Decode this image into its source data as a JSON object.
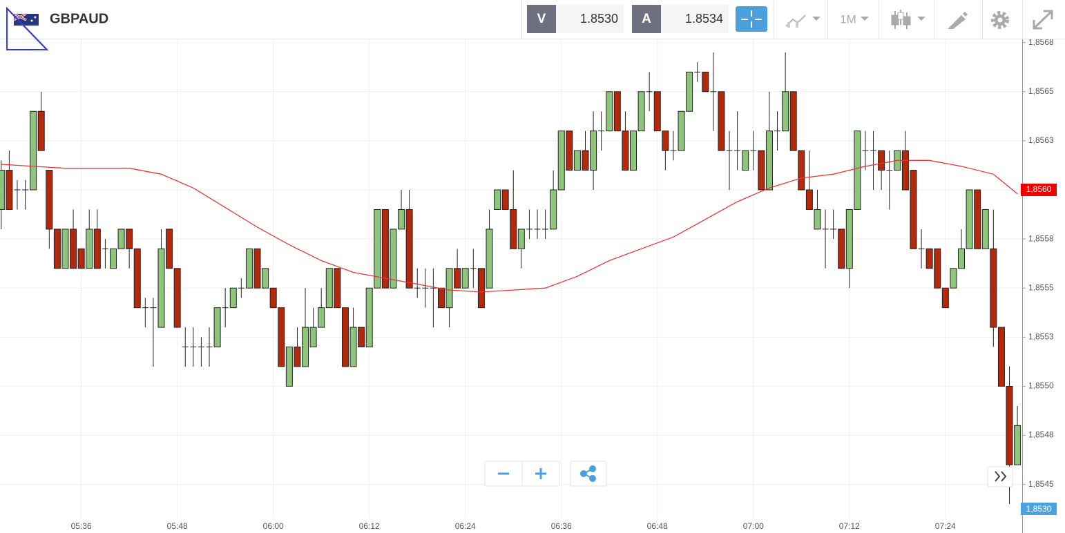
{
  "header": {
    "symbol": "GBPAUD",
    "bid_label": "V",
    "bid": "1.8530",
    "ask_label": "A",
    "ask": "1.8534",
    "timeframe": "1M",
    "bottom_tag": "1,8530"
  },
  "chart_data": {
    "type": "candlestick",
    "categories": [
      null,
      null,
      null,
      null,
      null,
      null,
      null,
      null,
      null,
      null,
      "05:36",
      null,
      null,
      null,
      null,
      null,
      null,
      null,
      null,
      null,
      null,
      null,
      "05:48",
      null,
      null,
      null,
      null,
      null,
      null,
      null,
      null,
      null,
      null,
      null,
      "06:00",
      null,
      null,
      null,
      null,
      null,
      null,
      null,
      null,
      null,
      null,
      null,
      "06:12",
      null,
      null,
      null,
      null,
      null,
      null,
      null,
      null,
      null,
      null,
      null,
      "06:24",
      null,
      null,
      null,
      null,
      null,
      null,
      null,
      null,
      null,
      null,
      null,
      "06:36",
      null,
      null,
      null,
      null,
      null,
      null,
      null,
      null,
      null,
      null,
      null,
      "06:48",
      null,
      null,
      null,
      null,
      null,
      null,
      null,
      null,
      null,
      null,
      null,
      "07:00",
      null,
      null,
      null,
      null,
      null,
      null,
      null,
      null,
      null,
      null,
      null,
      "07:12",
      null,
      null,
      null,
      null,
      null,
      null,
      null,
      null,
      null,
      null,
      null,
      "07:24",
      null,
      null,
      null,
      null,
      null,
      null,
      null,
      null,
      null
    ],
    "open": [
      1.8559,
      1.8561,
      1.856,
      1.856,
      1.856,
      1.8564,
      1.8561,
      1.8558,
      1.8556,
      1.8558,
      1.8557,
      1.8556,
      1.8558,
      1.8557,
      1.8556,
      1.8557,
      1.8558,
      1.8557,
      1.8554,
      1.8554,
      1.8553,
      1.8558,
      1.8556,
      1.8552,
      1.8552,
      1.8552,
      1.8552,
      1.8552,
      1.8554,
      1.8554,
      1.8555,
      1.8555,
      1.8557,
      1.8555,
      1.8555,
      1.8554,
      1.855,
      1.8552,
      1.8551,
      1.8552,
      1.8553,
      1.8554,
      1.8556,
      1.8554,
      1.8551,
      1.8553,
      1.8552,
      1.8555,
      1.8559,
      1.8555,
      1.8558,
      1.8559,
      1.8555,
      1.8555,
      1.8555,
      1.8555,
      1.8554,
      1.8556,
      1.8555,
      1.8556,
      1.8556,
      1.8555,
      1.8559,
      1.856,
      1.8559,
      1.8557,
      1.8558,
      1.8558,
      1.8558,
      1.8558,
      1.856,
      1.8563,
      1.8561,
      1.8562,
      1.8561,
      1.8563,
      1.8563,
      1.8565,
      1.8563,
      1.8561,
      1.8563,
      1.8565,
      1.8565,
      1.8563,
      1.8562,
      1.8562,
      1.8564,
      1.8566,
      1.8566,
      1.8565,
      1.8565,
      1.8562,
      1.8562,
      1.8561,
      1.8562,
      1.8562,
      1.856,
      1.8563,
      1.8563,
      1.8565,
      1.8562,
      1.856,
      1.8558,
      1.8558,
      1.8558,
      1.8558,
      1.8556,
      1.8559,
      1.8562,
      1.8562,
      1.8562,
      1.8561,
      1.8561,
      1.8562,
      1.8561,
      1.8557,
      1.8557,
      1.8557,
      1.8555,
      1.8555,
      1.8556,
      1.8557,
      1.856,
      1.8557,
      1.8557,
      1.8553,
      1.855,
      1.8546
    ],
    "high": [
      1.85615,
      1.8562,
      1.85605,
      1.85605,
      1.8564,
      1.8565,
      1.8561,
      1.8558,
      1.8558,
      1.8559,
      1.8557,
      1.8559,
      1.8559,
      1.85575,
      1.8557,
      1.8558,
      1.8558,
      1.8557,
      1.85545,
      1.85545,
      1.8558,
      1.8558,
      1.8556,
      1.8553,
      1.8553,
      1.85525,
      1.8553,
      1.8554,
      1.8555,
      1.8555,
      1.85555,
      1.8557,
      1.8557,
      1.8556,
      1.8555,
      1.8554,
      1.8552,
      1.8553,
      1.8555,
      1.8554,
      1.8555,
      1.8556,
      1.8556,
      1.8554,
      1.8554,
      1.8553,
      1.8555,
      1.8559,
      1.8559,
      1.8558,
      1.856,
      1.856,
      1.8556,
      1.8556,
      1.8556,
      1.8555,
      1.8556,
      1.8557,
      1.8556,
      1.8557,
      1.8556,
      1.8559,
      1.856,
      1.856,
      1.8561,
      1.8558,
      1.8559,
      1.8559,
      1.8559,
      1.8561,
      1.8563,
      1.8563,
      1.8562,
      1.8563,
      1.8564,
      1.8564,
      1.8565,
      1.8565,
      1.8564,
      1.8563,
      1.8565,
      1.8566,
      1.8565,
      1.8563,
      1.8563,
      1.8564,
      1.8566,
      1.85665,
      1.8566,
      1.8567,
      1.8565,
      1.8563,
      1.8564,
      1.8562,
      1.8563,
      1.8562,
      1.8565,
      1.8564,
      1.8567,
      1.8565,
      1.8562,
      1.8562,
      1.856,
      1.8559,
      1.8559,
      1.8558,
      1.8559,
      1.8563,
      1.8563,
      1.8563,
      1.8562,
      1.8562,
      1.8562,
      1.8563,
      1.8561,
      1.8558,
      1.8557,
      1.8557,
      1.8555,
      1.8556,
      1.8558,
      1.856,
      1.856,
      1.8559,
      1.8559,
      1.8553,
      1.8551,
      1.8549
    ],
    "low": [
      1.8558,
      1.8559,
      1.8559,
      1.8559,
      1.856,
      1.8562,
      1.8557,
      1.8556,
      1.8556,
      1.8556,
      1.8556,
      1.8556,
      1.8556,
      1.8556,
      1.8556,
      1.8557,
      1.8556,
      1.8554,
      1.8553,
      1.8551,
      1.8553,
      1.8556,
      1.8553,
      1.8551,
      1.8551,
      1.8551,
      1.8551,
      1.8552,
      1.8553,
      1.8554,
      1.85545,
      1.8555,
      1.8555,
      1.8555,
      1.8554,
      1.8551,
      1.855,
      1.8551,
      1.8551,
      1.8552,
      1.8553,
      1.8554,
      1.8554,
      1.8551,
      1.8551,
      1.8552,
      1.8552,
      1.8555,
      1.8555,
      1.8555,
      1.8558,
      1.8555,
      1.85545,
      1.8554,
      1.8553,
      1.8554,
      1.8553,
      1.8555,
      1.8555,
      1.8555,
      1.8554,
      1.8555,
      1.8559,
      1.8559,
      1.8557,
      1.8556,
      1.85575,
      1.85575,
      1.85575,
      1.8558,
      1.856,
      1.8561,
      1.8561,
      1.8561,
      1.856,
      1.8562,
      1.8563,
      1.8563,
      1.8561,
      1.8561,
      1.8563,
      1.8564,
      1.8563,
      1.8561,
      1.85615,
      1.8562,
      1.8564,
      1.85655,
      1.8565,
      1.8563,
      1.8562,
      1.856,
      1.8561,
      1.8561,
      1.8561,
      1.856,
      1.856,
      1.8562,
      1.8563,
      1.8562,
      1.856,
      1.8559,
      1.8558,
      1.8556,
      1.85575,
      1.8556,
      1.8555,
      1.8559,
      1.8561,
      1.856,
      1.856,
      1.8559,
      1.8561,
      1.856,
      1.8557,
      1.8556,
      1.8556,
      1.8555,
      1.8554,
      1.8555,
      1.8556,
      1.8557,
      1.8557,
      1.8557,
      1.8552,
      1.855,
      1.8544,
      1.8546
    ],
    "close": [
      1.8561,
      1.8559,
      1.856,
      1.856,
      1.8564,
      1.8562,
      1.8558,
      1.8556,
      1.8558,
      1.8556,
      1.8556,
      1.8558,
      1.8556,
      1.8557,
      1.8557,
      1.8558,
      1.8557,
      1.8554,
      1.8554,
      1.8554,
      1.8557,
      1.8556,
      1.8553,
      1.8552,
      1.8552,
      1.8552,
      1.8552,
      1.8554,
      1.8554,
      1.8555,
      1.8555,
      1.8557,
      1.8555,
      1.8556,
      1.8554,
      1.8551,
      1.8552,
      1.8551,
      1.8553,
      1.8553,
      1.8554,
      1.8556,
      1.8554,
      1.8551,
      1.8553,
      1.8552,
      1.8555,
      1.8559,
      1.8555,
      1.8558,
      1.8559,
      1.8555,
      1.8555,
      1.8555,
      1.8555,
      1.8554,
      1.8556,
      1.8555,
      1.8556,
      1.8556,
      1.8554,
      1.8558,
      1.856,
      1.8559,
      1.8557,
      1.8558,
      1.8558,
      1.8558,
      1.8558,
      1.856,
      1.8563,
      1.8561,
      1.8562,
      1.8561,
      1.8563,
      1.8563,
      1.8565,
      1.8563,
      1.8561,
      1.8563,
      1.8565,
      1.8565,
      1.8563,
      1.8562,
      1.8562,
      1.8564,
      1.8566,
      1.8566,
      1.8565,
      1.8565,
      1.8562,
      1.8562,
      1.8562,
      1.8562,
      1.8562,
      1.856,
      1.8563,
      1.8563,
      1.8565,
      1.8562,
      1.856,
      1.8559,
      1.8559,
      1.8558,
      1.8558,
      1.8556,
      1.8559,
      1.8563,
      1.8562,
      1.8562,
      1.8561,
      1.8561,
      1.8562,
      1.856,
      1.8557,
      1.8557,
      1.8556,
      1.8555,
      1.8554,
      1.8556,
      1.8557,
      1.856,
      1.8557,
      1.8559,
      1.8553,
      1.855,
      1.8546,
      1.8548
    ],
    "up_color": "#8fc47c",
    "down_color": "#b3290c",
    "border_color": "#222222",
    "moving_average": {
      "color": "#ee3434",
      "x": [
        0,
        4,
        8,
        12,
        16,
        20,
        24,
        28,
        32,
        36,
        40,
        44,
        48,
        52,
        56,
        60,
        64,
        68,
        72,
        76,
        80,
        84,
        88,
        92,
        96,
        100,
        104,
        108,
        112,
        116,
        120,
        124,
        127
      ],
      "values": [
        1.85613,
        1.85612,
        1.85611,
        1.85611,
        1.85611,
        1.85608,
        1.85601,
        1.85591,
        1.85581,
        1.85572,
        1.85564,
        1.85558,
        1.85555,
        1.85552,
        1.85549,
        1.85548,
        1.85549,
        1.8555,
        1.85556,
        1.85564,
        1.8557,
        1.85576,
        1.85585,
        1.85594,
        1.85601,
        1.85606,
        1.85608,
        1.85612,
        1.85615,
        1.85615,
        1.85612,
        1.85608,
        1.85598
      ]
    },
    "last_price": {
      "value": 1.856,
      "label": "1,8560",
      "color": "#ee0000"
    },
    "ylim": [
      1.85433,
      1.85677
    ],
    "yticks": [
      {
        "value": 1.85675,
        "label": "1,8568"
      },
      {
        "value": 1.8565,
        "label": "1,8565"
      },
      {
        "value": 1.85625,
        "label": "1,8563"
      },
      {
        "value": 1.856,
        "label": "1,8560"
      },
      {
        "value": 1.85575,
        "label": "1,8558"
      },
      {
        "value": 1.8555,
        "label": "1,8555"
      },
      {
        "value": 1.85525,
        "label": "1,8553"
      },
      {
        "value": 1.855,
        "label": "1,8550"
      },
      {
        "value": 1.85475,
        "label": "1,8548"
      },
      {
        "value": 1.8545,
        "label": "1,8545"
      }
    ],
    "grid": true
  }
}
